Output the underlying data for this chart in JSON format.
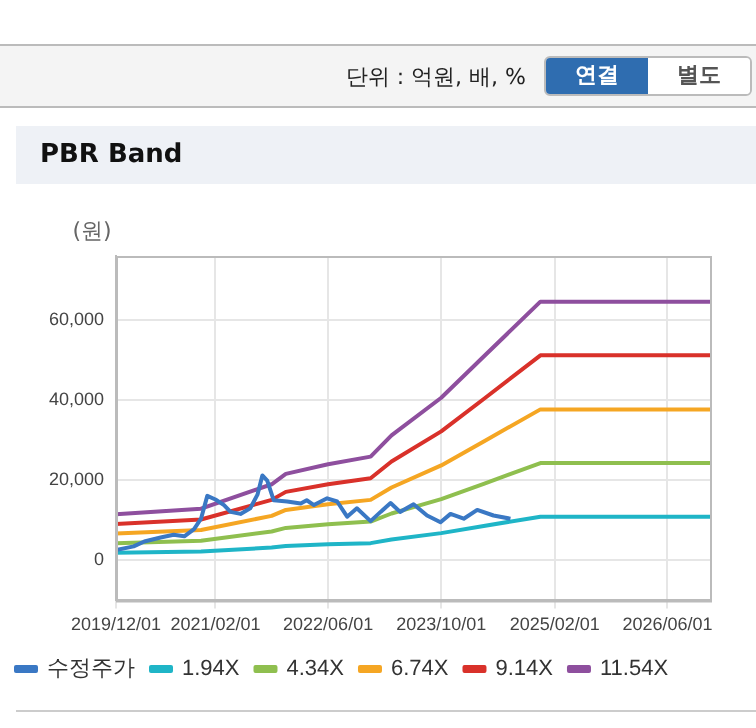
{
  "chart_data": {
    "type": "line",
    "title": "PBR Band",
    "ylabel": "(원)",
    "annotations": [
      "단위 : 억원, 배, %",
      "연결",
      "별도"
    ],
    "xlim": [
      "2019-12-01",
      "2026-12-01"
    ],
    "xticks": [
      {
        "value": "2019-12-01",
        "label": "2019/12/01"
      },
      {
        "value": "2021-02-01",
        "label": "2021/02/01"
      },
      {
        "value": "2022-06-01",
        "label": "2022/06/01"
      },
      {
        "value": "2023-10-01",
        "label": "2023/10/01"
      },
      {
        "value": "2025-02-01",
        "label": "2025/02/01"
      },
      {
        "value": "2026-06-01",
        "label": "2026/06/01"
      }
    ],
    "ylim": [
      -10000,
      76000
    ],
    "yticks": [
      {
        "value": 0,
        "label": "0"
      },
      {
        "value": 20000,
        "label": "20,000"
      },
      {
        "value": 40000,
        "label": "40,000"
      },
      {
        "value": 60000,
        "label": "60,000"
      }
    ],
    "grid": true,
    "legend": "bottom",
    "marker": "none",
    "line_style": "solid",
    "series": [
      {
        "name": "수정주가",
        "color": "#3a78c4",
        "x": [
          "2019-12-01",
          "2020-02-15",
          "2020-04-01",
          "2020-06-10",
          "2020-08-05",
          "2020-09-20",
          "2020-11-01",
          "2020-12-01",
          "2020-12-28",
          "2021-02-01",
          "2021-03-10",
          "2021-04-07",
          "2021-05-20",
          "2021-07-01",
          "2021-08-01",
          "2021-08-22",
          "2021-09-12",
          "2021-10-10",
          "2021-12-07",
          "2022-02-03",
          "2022-03-01",
          "2022-04-01",
          "2022-05-28",
          "2022-07-10",
          "2022-08-22",
          "2022-10-03",
          "2022-12-01",
          "2023-01-13",
          "2023-02-25",
          "2023-04-07",
          "2023-06-04",
          "2023-08-01",
          "2023-09-28",
          "2023-11-10",
          "2024-01-06",
          "2024-03-04",
          "2024-05-13",
          "2024-07-25"
        ],
        "values": [
          2600,
          3500,
          4700,
          5700,
          6400,
          6000,
          7800,
          10400,
          16100,
          15200,
          13800,
          12100,
          11600,
          13000,
          16400,
          21200,
          19900,
          15000,
          14700,
          14200,
          15000,
          13800,
          15500,
          14700,
          10900,
          13000,
          9800,
          12100,
          14300,
          12100,
          14000,
          11200,
          9500,
          11600,
          10400,
          12600,
          11200,
          10400
        ]
      },
      {
        "name": "1.94X",
        "color": "#1fb5c7",
        "x": [
          "2019-12-01",
          "2020-12-01",
          "2021-10-01",
          "2021-12-01",
          "2022-06-01",
          "2022-12-01",
          "2023-03-01",
          "2023-10-01",
          "2024-04-01",
          "2024-12-01",
          "2026-12-01"
        ],
        "values": [
          1900,
          2200,
          3200,
          3600,
          4000,
          4300,
          5200,
          6800,
          8600,
          10900,
          10900
        ]
      },
      {
        "name": "4.34X",
        "color": "#8fbf4f",
        "x": [
          "2019-12-01",
          "2020-12-01",
          "2021-10-01",
          "2021-12-01",
          "2022-06-01",
          "2022-12-01",
          "2023-03-01",
          "2023-10-01",
          "2024-04-01",
          "2024-12-01",
          "2026-12-01"
        ],
        "values": [
          4300,
          4900,
          7200,
          8100,
          9000,
          9700,
          11700,
          15300,
          19100,
          24300,
          24300
        ]
      },
      {
        "name": "6.74X",
        "color": "#f5a623",
        "x": [
          "2019-12-01",
          "2020-12-01",
          "2021-10-01",
          "2021-12-01",
          "2022-06-01",
          "2022-12-01",
          "2023-03-01",
          "2023-10-01",
          "2024-04-01",
          "2024-12-01",
          "2026-12-01"
        ],
        "values": [
          6700,
          7600,
          11100,
          12600,
          14000,
          15100,
          18200,
          23700,
          29700,
          37700,
          37700
        ]
      },
      {
        "name": "9.14X",
        "color": "#d9312a",
        "x": [
          "2019-12-01",
          "2020-12-01",
          "2021-10-01",
          "2021-12-01",
          "2022-06-01",
          "2022-12-01",
          "2023-03-01",
          "2023-10-01",
          "2024-04-01",
          "2024-12-01",
          "2026-12-01"
        ],
        "values": [
          9100,
          10200,
          15100,
          17100,
          19000,
          20500,
          24700,
          32200,
          40300,
          51200,
          51200
        ]
      },
      {
        "name": "11.54X",
        "color": "#8e4f9e",
        "x": [
          "2019-12-01",
          "2020-12-01",
          "2021-10-01",
          "2021-12-01",
          "2022-06-01",
          "2022-12-01",
          "2023-03-01",
          "2023-10-01",
          "2024-04-01",
          "2024-12-01",
          "2026-12-01"
        ],
        "values": [
          11500,
          12900,
          19000,
          21600,
          24000,
          25900,
          31200,
          40600,
          50900,
          64600,
          64600
        ]
      }
    ]
  }
}
